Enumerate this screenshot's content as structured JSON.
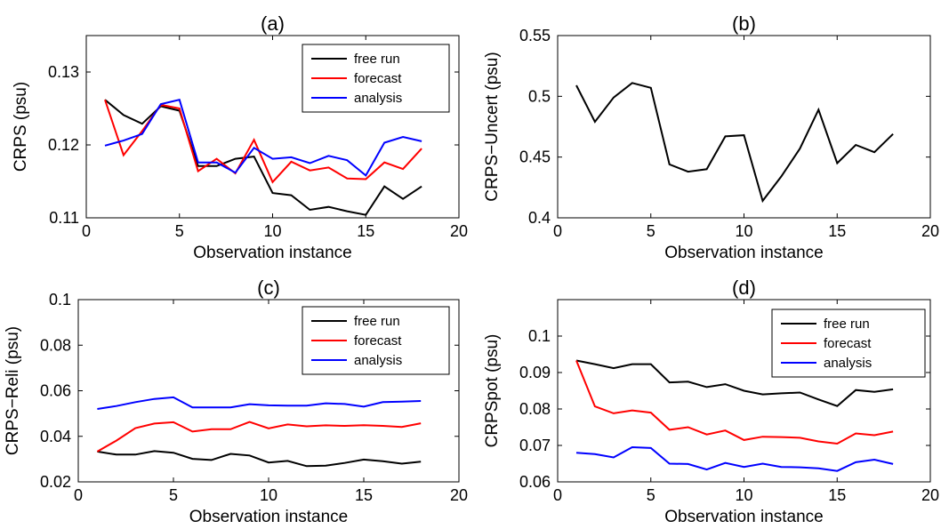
{
  "chart_data": [
    {
      "type": "line",
      "panel": "(a)",
      "title": "(a)",
      "xlabel": "Observation instance",
      "ylabel": "CRPS (psu)",
      "xlim": [
        0,
        20
      ],
      "ylim": [
        0.11,
        0.135
      ],
      "xticks": [
        0,
        5,
        10,
        15,
        20
      ],
      "xtick_labels": [
        "0",
        "5",
        "10",
        "15",
        "20"
      ],
      "yticks": [
        0.11,
        0.12,
        0.13
      ],
      "ytick_labels": [
        "0.11",
        "0.12",
        "0.13"
      ],
      "grid": false,
      "legend": "top-right",
      "x": [
        1,
        2,
        3,
        4,
        5,
        6,
        7,
        8,
        9,
        10,
        11,
        12,
        13,
        14,
        15,
        16,
        17,
        18
      ],
      "series": [
        {
          "name": "free run",
          "color": "#000000",
          "values": [
            0.1262,
            0.1241,
            0.1229,
            0.1253,
            0.1247,
            0.1171,
            0.1171,
            0.1181,
            0.1184,
            0.1134,
            0.1131,
            0.1111,
            0.1115,
            0.1109,
            0.1104,
            0.1143,
            0.1126,
            0.1143
          ]
        },
        {
          "name": "forecast",
          "color": "#ff0000",
          "values": [
            0.1262,
            0.1186,
            0.1219,
            0.1255,
            0.125,
            0.1164,
            0.1181,
            0.1161,
            0.1207,
            0.1149,
            0.1177,
            0.1165,
            0.1169,
            0.1154,
            0.1153,
            0.1176,
            0.1167,
            0.1195
          ]
        },
        {
          "name": "analysis",
          "color": "#0000ff",
          "values": [
            0.1199,
            0.1206,
            0.1215,
            0.1256,
            0.1262,
            0.1176,
            0.1176,
            0.1162,
            0.1196,
            0.1181,
            0.1183,
            0.1175,
            0.1185,
            0.1179,
            0.1158,
            0.1203,
            0.1211,
            0.1205
          ]
        }
      ]
    },
    {
      "type": "line",
      "panel": "(b)",
      "title": "(b)",
      "xlabel": "Observation instance",
      "ylabel": "CRPS−Uncert (psu)",
      "xlim": [
        0,
        20
      ],
      "ylim": [
        0.4,
        0.55
      ],
      "xticks": [
        0,
        5,
        10,
        15,
        20
      ],
      "xtick_labels": [
        "0",
        "5",
        "10",
        "15",
        "20"
      ],
      "yticks": [
        0.4,
        0.45,
        0.5,
        0.55
      ],
      "ytick_labels": [
        "0.4",
        "0.45",
        "0.5",
        "0.55"
      ],
      "grid": false,
      "legend": "none",
      "x": [
        1,
        2,
        3,
        4,
        5,
        6,
        7,
        8,
        9,
        10,
        11,
        12,
        13,
        14,
        15,
        16,
        17,
        18
      ],
      "series": [
        {
          "name": "",
          "color": "#000000",
          "values": [
            0.509,
            0.479,
            0.499,
            0.511,
            0.507,
            0.444,
            0.438,
            0.44,
            0.467,
            0.468,
            0.414,
            0.434,
            0.457,
            0.489,
            0.445,
            0.46,
            0.454,
            0.469
          ]
        }
      ]
    },
    {
      "type": "line",
      "panel": "(c)",
      "title": "(c)",
      "xlabel": "Observation instance",
      "ylabel": "CRPS−Reli (psu)",
      "xlim": [
        0,
        20
      ],
      "ylim": [
        0.02,
        0.1
      ],
      "xticks": [
        0,
        5,
        10,
        15,
        20
      ],
      "xtick_labels": [
        "0",
        "5",
        "10",
        "15",
        "20"
      ],
      "yticks": [
        0.02,
        0.04,
        0.06,
        0.08,
        0.1
      ],
      "ytick_labels": [
        "0.02",
        "0.04",
        "0.06",
        "0.08",
        "0.1"
      ],
      "grid": false,
      "legend": "top-right",
      "x": [
        1,
        2,
        3,
        4,
        5,
        6,
        7,
        8,
        9,
        10,
        11,
        12,
        13,
        14,
        15,
        16,
        17,
        18
      ],
      "series": [
        {
          "name": "free run",
          "color": "#000000",
          "values": [
            0.0333,
            0.032,
            0.032,
            0.0335,
            0.0328,
            0.0301,
            0.0296,
            0.0323,
            0.0316,
            0.0285,
            0.0292,
            0.0269,
            0.0271,
            0.0283,
            0.0298,
            0.0291,
            0.028,
            0.0289
          ]
        },
        {
          "name": "forecast",
          "color": "#ff0000",
          "values": [
            0.0333,
            0.0381,
            0.0436,
            0.0456,
            0.0462,
            0.0421,
            0.0431,
            0.0431,
            0.0463,
            0.0435,
            0.0452,
            0.0444,
            0.0448,
            0.0446,
            0.0449,
            0.0446,
            0.0441,
            0.0457
          ]
        },
        {
          "name": "analysis",
          "color": "#0000ff",
          "values": [
            0.052,
            0.0533,
            0.055,
            0.0564,
            0.0571,
            0.0527,
            0.0527,
            0.0527,
            0.0541,
            0.0536,
            0.0535,
            0.0535,
            0.0545,
            0.0542,
            0.053,
            0.055,
            0.0552,
            0.0555
          ]
        }
      ]
    },
    {
      "type": "line",
      "panel": "(d)",
      "title": "(d)",
      "xlabel": "Observation instance",
      "ylabel": "CRPSpot (psu)",
      "xlim": [
        0,
        20
      ],
      "ylim": [
        0.06,
        0.11
      ],
      "xticks": [
        0,
        5,
        10,
        15,
        20
      ],
      "xtick_labels": [
        "0",
        "5",
        "10",
        "15",
        "20"
      ],
      "yticks": [
        0.06,
        0.07,
        0.08,
        0.09,
        0.1
      ],
      "ytick_labels": [
        "0.06",
        "0.07",
        "0.08",
        "0.09",
        "0.1"
      ],
      "grid": false,
      "legend": "top-right",
      "x": [
        1,
        2,
        3,
        4,
        5,
        6,
        7,
        8,
        9,
        10,
        11,
        12,
        13,
        14,
        15,
        16,
        17,
        18
      ],
      "series": [
        {
          "name": "free run",
          "color": "#000000",
          "values": [
            0.0933,
            0.0923,
            0.0912,
            0.0923,
            0.0923,
            0.0873,
            0.0875,
            0.086,
            0.0868,
            0.085,
            0.084,
            0.0843,
            0.0845,
            0.0826,
            0.0808,
            0.0852,
            0.0847,
            0.0854
          ]
        },
        {
          "name": "forecast",
          "color": "#ff0000",
          "values": [
            0.0933,
            0.0807,
            0.0788,
            0.0796,
            0.079,
            0.0743,
            0.075,
            0.073,
            0.0741,
            0.0715,
            0.0724,
            0.0723,
            0.0721,
            0.0711,
            0.0705,
            0.0733,
            0.0728,
            0.0738
          ]
        },
        {
          "name": "analysis",
          "color": "#0000ff",
          "values": [
            0.068,
            0.0676,
            0.0667,
            0.0695,
            0.0693,
            0.065,
            0.0649,
            0.0634,
            0.0652,
            0.0641,
            0.065,
            0.0641,
            0.064,
            0.0637,
            0.063,
            0.0654,
            0.0661,
            0.0649
          ]
        }
      ]
    }
  ]
}
